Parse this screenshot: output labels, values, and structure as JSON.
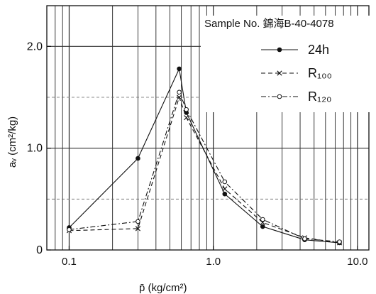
{
  "chart_data": {
    "type": "line",
    "sample_label": "Sample No. 錦海B-40-4078",
    "xlabel": "p̄ (kg/cm²)",
    "ylabel": "aᵥ (cm²/kg)",
    "x_scale": "log",
    "xlim": [
      0.07,
      12
    ],
    "ylim": [
      0,
      2.4
    ],
    "x_ticks": [
      {
        "value": 0.1,
        "label": "0.1"
      },
      {
        "value": 1.0,
        "label": "1.0"
      },
      {
        "value": 10.0,
        "label": "10.0"
      }
    ],
    "y_ticks": [
      {
        "value": 0,
        "label": "0"
      },
      {
        "value": 1.0,
        "label": "1.0"
      },
      {
        "value": 2.0,
        "label": "2.0"
      }
    ],
    "grid": true,
    "legend_position": "top-right",
    "series": [
      {
        "name": "24h",
        "line_style": "solid",
        "marker": "filled-dot",
        "x": [
          0.1,
          0.3,
          0.58,
          0.65,
          1.2,
          2.2,
          4.3,
          7.5
        ],
        "y": [
          0.22,
          0.9,
          1.78,
          1.35,
          0.55,
          0.23,
          0.1,
          0.07
        ]
      },
      {
        "name": "R₁₀₀",
        "line_style": "dashed",
        "marker": "x",
        "x": [
          0.1,
          0.3,
          0.58,
          0.65,
          1.2,
          2.2,
          4.3,
          7.5
        ],
        "y": [
          0.19,
          0.21,
          1.5,
          1.3,
          0.6,
          0.27,
          0.12,
          0.07
        ]
      },
      {
        "name": "R₁₂₀",
        "line_style": "dash-dot",
        "marker": "open-circle",
        "x": [
          0.1,
          0.3,
          0.58,
          0.65,
          1.2,
          2.2,
          4.3,
          7.5
        ],
        "y": [
          0.2,
          0.28,
          1.55,
          1.38,
          0.67,
          0.3,
          0.11,
          0.08
        ]
      }
    ]
  }
}
